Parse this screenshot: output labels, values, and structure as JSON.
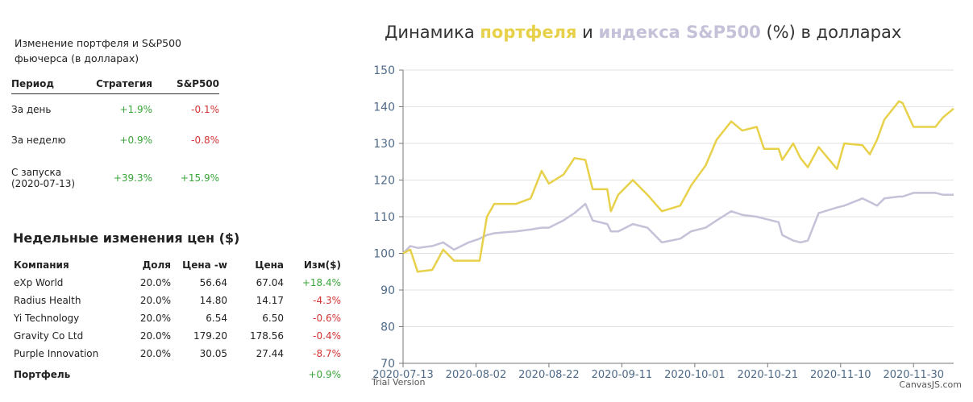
{
  "summary": {
    "title": "Изменение портфеля и S&P500 фьючерса (в долларах)",
    "headers": [
      "Период",
      "Стратегия",
      "S&P500"
    ],
    "rows": [
      [
        "За день",
        "+1.9%",
        "-0.1%"
      ],
      [
        "За неделю",
        "+0.9%",
        "-0.8%"
      ],
      [
        "С запуска (2020-07-13)",
        "+39.3%",
        "+15.9%"
      ]
    ]
  },
  "weekly": {
    "title": "Недельные изменения цен ($)",
    "headers": [
      "Компания",
      "Доля",
      "Цена -w",
      "Цена",
      "Изм($)"
    ],
    "rows": [
      [
        "eXp World",
        "20.0%",
        "56.64",
        "67.04",
        "+18.4%"
      ],
      [
        "Radius Health",
        "20.0%",
        "14.80",
        "14.17",
        "-4.3%"
      ],
      [
        "Yi Technology",
        "20.0%",
        "6.54",
        "6.50",
        "-0.6%"
      ],
      [
        "Gravity Co Ltd",
        "20.0%",
        "179.20",
        "178.56",
        "-0.4%"
      ],
      [
        "Purple Innovation",
        "20.0%",
        "30.05",
        "27.44",
        "-8.7%"
      ]
    ],
    "footer": [
      "Портфель",
      "+0.9%"
    ]
  },
  "chart_data": {
    "type": "line",
    "title": [
      "Динамика",
      "и",
      "(%) в долларах"
    ],
    "x": [
      "2020-07-13",
      "2020-07-15",
      "2020-07-17",
      "2020-07-21",
      "2020-07-24",
      "2020-07-27",
      "2020-07-31",
      "2020-08-03",
      "2020-08-05",
      "2020-08-07",
      "2020-08-13",
      "2020-08-17",
      "2020-08-20",
      "2020-08-22",
      "2020-08-26",
      "2020-08-29",
      "2020-09-01",
      "2020-09-03",
      "2020-09-07",
      "2020-09-08",
      "2020-09-10",
      "2020-09-14",
      "2020-09-18",
      "2020-09-22",
      "2020-09-27",
      "2020-09-30",
      "2020-10-04",
      "2020-10-07",
      "2020-10-11",
      "2020-10-14",
      "2020-10-18",
      "2020-10-20",
      "2020-10-24",
      "2020-10-25",
      "2020-10-28",
      "2020-10-30",
      "2020-11-01",
      "2020-11-04",
      "2020-11-09",
      "2020-11-11",
      "2020-11-16",
      "2020-11-18",
      "2020-11-20",
      "2020-11-22",
      "2020-11-26",
      "2020-11-27",
      "2020-11-30",
      "2020-12-06",
      "2020-12-08",
      "2020-12-11"
    ],
    "series": [
      {
        "name": "портфеля",
        "color": "#e8d14a",
        "values": [
          100,
          101,
          95,
          95.5,
          101,
          98,
          98,
          98,
          110,
          113.5,
          113.5,
          115,
          122.5,
          119,
          121.5,
          126,
          125.5,
          117.5,
          117.5,
          111.5,
          116,
          120,
          116,
          111.5,
          113,
          118.5,
          124,
          131,
          136,
          133.5,
          134.5,
          128.5,
          128.5,
          125.5,
          130,
          126,
          123.5,
          129,
          123,
          130,
          129.5,
          127,
          131,
          136.5,
          141.5,
          141,
          134.5,
          134.5,
          137,
          139.5
        ]
      },
      {
        "name": "индекса S&P500",
        "color": "#c5c1d8",
        "values": [
          100,
          102,
          101.5,
          102,
          103,
          101,
          103,
          104,
          105,
          105.5,
          106,
          106.5,
          107,
          107,
          109,
          111,
          113.5,
          109,
          108,
          106,
          106,
          108,
          107,
          103,
          104,
          106,
          107,
          109,
          111.5,
          110.5,
          110,
          109.5,
          108.5,
          105,
          103.5,
          103,
          103.5,
          111,
          112.5,
          113,
          115,
          114,
          113,
          115,
          115.5,
          115.5,
          116.5,
          116.5,
          116,
          116
        ]
      }
    ],
    "xlim": [
      "2020-07-13",
      "2020-12-11"
    ],
    "xticks": [
      "2020-07-13",
      "2020-08-02",
      "2020-08-22",
      "2020-09-11",
      "2020-10-01",
      "2020-10-21",
      "2020-11-10",
      "2020-11-30"
    ],
    "ylim": [
      70,
      150
    ],
    "yticks": [
      70,
      80,
      90,
      100,
      110,
      120,
      130,
      140,
      150
    ],
    "grid": true
  },
  "watermark": {
    "left": "Trial Version",
    "right": "CanvasJS.com"
  }
}
